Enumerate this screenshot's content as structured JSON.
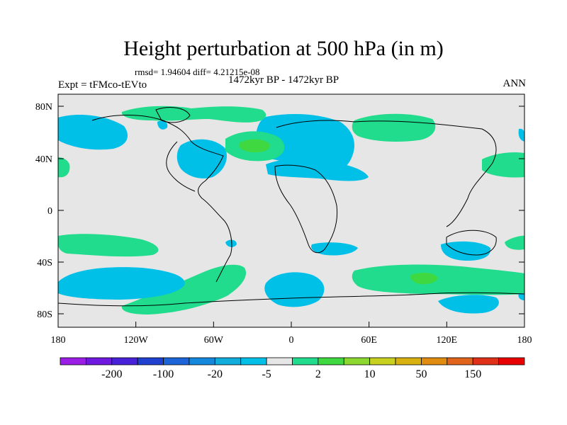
{
  "title": "Height perturbation at 500 hPa (in m)",
  "stats": "rmsd= 1.94604 diff= 4.21215e-08",
  "period": "1472kyr BP - 1472kyr BP",
  "experiment": "Expt = tFMco-tEVto",
  "season": "ANN",
  "colors": {
    "neutral": "#e6e6e6",
    "negative_small": "#00c0e8",
    "positive_small": "#20dc8c",
    "positive_medium": "#40d840"
  },
  "axes": {
    "lat_labels": [
      "80N",
      "40N",
      "0",
      "40S",
      "80S"
    ],
    "lon_labels": [
      "180",
      "120W",
      "60W",
      "0",
      "60E",
      "120E",
      "180"
    ]
  },
  "colorbar": {
    "colors": [
      "#9a1ee6",
      "#6e18e0",
      "#4822d8",
      "#2040d0",
      "#1c64d8",
      "#1488dc",
      "#10acdc",
      "#00c0e8",
      "#e6e6e6",
      "#20dc8c",
      "#40d840",
      "#8cd830",
      "#c8d020",
      "#d8b010",
      "#e08c10",
      "#e0641c",
      "#e03018",
      "#e80000"
    ],
    "labels": [
      "-200",
      "-100",
      "-20",
      "-5",
      "2",
      "10",
      "50",
      "150"
    ]
  }
}
